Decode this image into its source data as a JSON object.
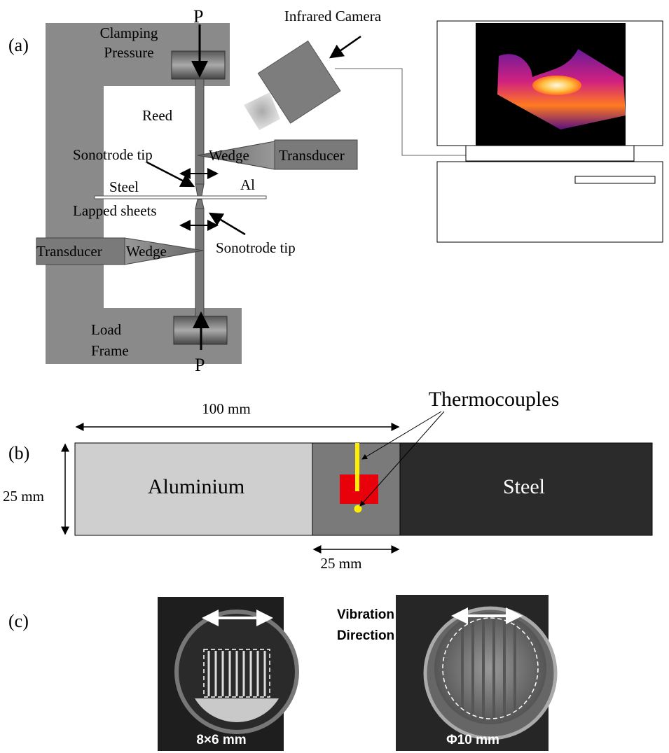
{
  "panel_a": {
    "label": "(a)",
    "top_force": "P",
    "clamping": [
      "Clamping",
      "Pressure"
    ],
    "camera": "Infrared Camera",
    "reed": "Reed",
    "sonotrode_top": "Sonotrode tip",
    "wedge_top": "Wedge",
    "transducer_top": "Transducer",
    "steel": "Steel",
    "al": "Al",
    "lapped": "Lapped sheets",
    "transducer_bottom": "Transducer",
    "wedge_bottom": "Wedge",
    "sonotrode_bottom": "Sonotrode tip",
    "load_frame": [
      "Load",
      "Frame"
    ],
    "bottom_force": "P"
  },
  "panel_b": {
    "label": "(b)",
    "length": "100 mm",
    "thermocouples": "Thermocouples",
    "aluminium": "Aluminium",
    "steel": "Steel",
    "width": "25 mm",
    "overlap": "25 mm"
  },
  "panel_c": {
    "label": "(c)",
    "direction": [
      "Vibration",
      "Direction"
    ],
    "left_size": "8×6 mm",
    "right_size": "Φ10 mm"
  }
}
